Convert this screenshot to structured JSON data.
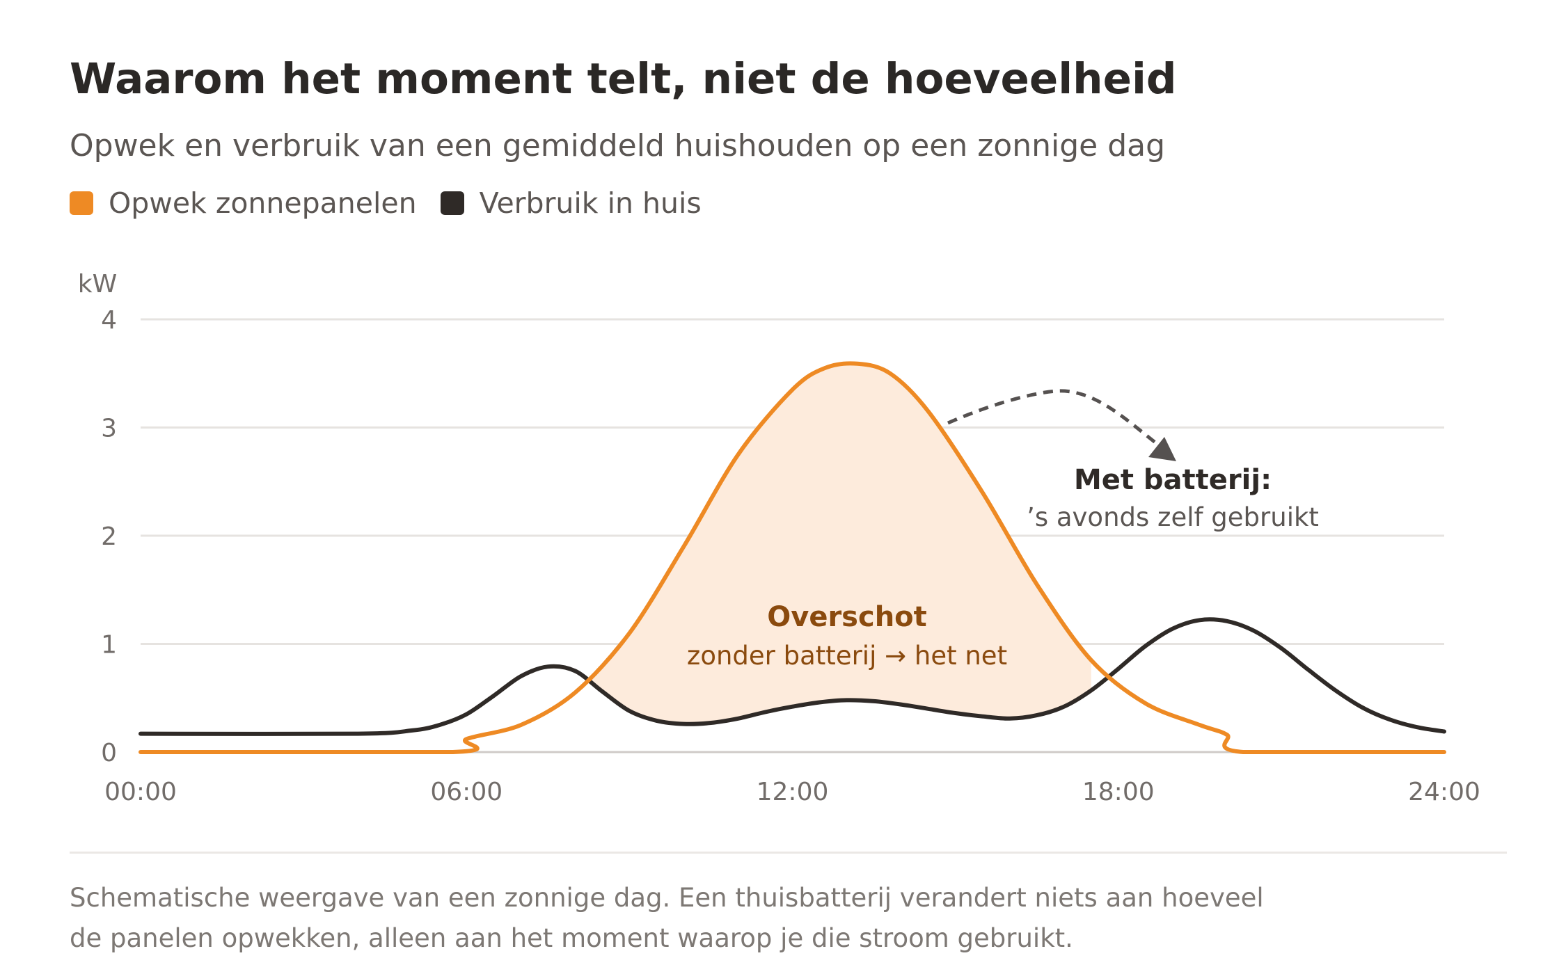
{
  "title": "Waarom het moment telt, niet de hoeveelheid",
  "subtitle": "Opwek en verbruik van een gemiddeld huishouden op een zonnige dag",
  "legend": [
    {
      "label": "Opwek zonnepanelen",
      "color": "#ee8a24"
    },
    {
      "label": "Verbruik in huis",
      "color": "#2f2a27"
    }
  ],
  "annotations": {
    "overschot_title": "Overschot",
    "overschot_sub": "zonder batterij → het net",
    "battery_title": "Met batterij:",
    "battery_sub": "’s avonds zelf gebruikt"
  },
  "footnote": {
    "line1": "Schematische weergave van een zonnige dag. Een thuisbatterij verandert niets aan hoeveel",
    "line2": "de panelen opwekken, alleen aan het moment waarop je die stroom gebruikt."
  },
  "colors": {
    "solar": "#ee8a24",
    "solar_fill": "#fdebdc",
    "consumption": "#2f2a27",
    "overschot_text": "#8a4a0e",
    "grid": "#e6e3e0",
    "axis_text": "#716c69"
  },
  "chart_data": {
    "type": "line",
    "ylabel": "kW",
    "ylim": [
      0,
      4
    ],
    "yticks": [
      "0",
      "1",
      "2",
      "3",
      "4"
    ],
    "xticks": [
      "00:00",
      "06:00",
      "12:00",
      "18:00",
      "24:00"
    ],
    "xlim": [
      0,
      24
    ],
    "grid": true,
    "series": [
      {
        "name": "Opwek zonnepanelen",
        "x": [
          0,
          5.75,
          6.0,
          7.0,
          8.0,
          9.0,
          10.0,
          11.0,
          12.0,
          12.6,
          13.2,
          13.8,
          14.5,
          15.5,
          16.5,
          17.5,
          18.5,
          19.5,
          20.0,
          20.3,
          24
        ],
        "values": [
          0,
          0,
          0.12,
          0.25,
          0.55,
          1.1,
          1.9,
          2.75,
          3.35,
          3.55,
          3.59,
          3.5,
          3.15,
          2.4,
          1.55,
          0.85,
          0.45,
          0.25,
          0.16,
          0,
          0
        ]
      },
      {
        "name": "Verbruik in huis",
        "x": [
          0,
          4.0,
          5.0,
          5.5,
          6.0,
          6.5,
          7.0,
          7.5,
          8.0,
          8.5,
          9.0,
          9.5,
          10.0,
          10.5,
          11.0,
          11.5,
          12.0,
          12.5,
          13.0,
          13.5,
          14.0,
          14.5,
          15.0,
          15.5,
          16.0,
          16.5,
          17.0,
          17.5,
          18.0,
          18.5,
          19.0,
          19.5,
          20.0,
          20.5,
          21.0,
          21.5,
          22.0,
          22.5,
          23.0,
          23.5,
          24.0
        ],
        "values": [
          0.17,
          0.17,
          0.2,
          0.25,
          0.35,
          0.52,
          0.7,
          0.79,
          0.75,
          0.56,
          0.38,
          0.29,
          0.26,
          0.27,
          0.31,
          0.37,
          0.42,
          0.46,
          0.48,
          0.47,
          0.44,
          0.4,
          0.36,
          0.33,
          0.31,
          0.34,
          0.42,
          0.57,
          0.77,
          0.98,
          1.14,
          1.22,
          1.21,
          1.12,
          0.96,
          0.76,
          0.57,
          0.41,
          0.3,
          0.23,
          0.19
        ]
      }
    ]
  }
}
